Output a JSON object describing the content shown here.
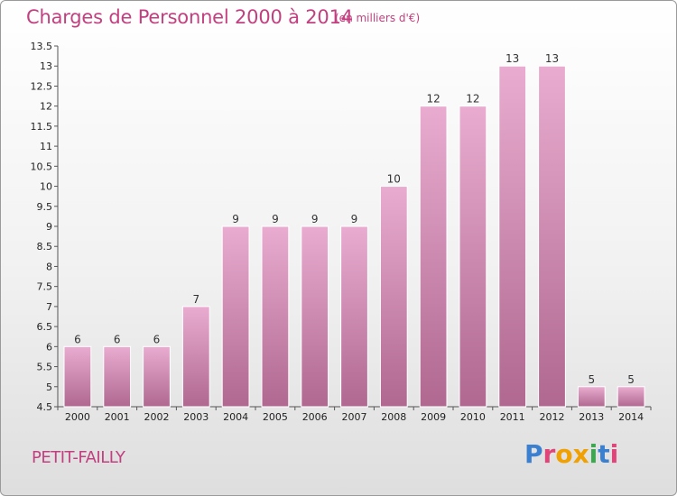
{
  "header": {
    "title": "Charges de Personnel 2000 à 2014",
    "subtitle": "(en milliers d'€)"
  },
  "footer": {
    "commune": "PETIT-FAILLY",
    "logo_text": "Proxiti"
  },
  "colors": {
    "title": "#c2407f",
    "bar_light": "#e7a6cb",
    "bar_dark": "#b26a92",
    "axis": "#555555"
  },
  "chart_data": {
    "type": "bar",
    "categories": [
      "2000",
      "2001",
      "2002",
      "2003",
      "2004",
      "2005",
      "2006",
      "2007",
      "2008",
      "2009",
      "2010",
      "2011",
      "2012",
      "2013",
      "2014"
    ],
    "values": [
      6,
      6,
      6,
      7,
      9,
      9,
      9,
      9,
      10,
      12,
      12,
      13,
      13,
      5,
      5
    ],
    "data_labels": [
      "6",
      "6",
      "6",
      "7",
      "9",
      "9",
      "9",
      "9",
      "10",
      "12",
      "12",
      "13",
      "13",
      "5",
      "5"
    ],
    "title": "Charges de Personnel 2000 à 2014",
    "subtitle": "(en milliers d'€)",
    "xlabel": "",
    "ylabel": "",
    "ylim": [
      4.5,
      13.5
    ],
    "yticks": [
      4.5,
      5,
      5.5,
      6,
      6.5,
      7,
      7.5,
      8,
      8.5,
      9,
      9.5,
      10,
      10.5,
      11,
      11.5,
      12,
      12.5,
      13,
      13.5
    ],
    "ytick_labels": [
      "4.5",
      "5",
      "5.5",
      "6",
      "6.5",
      "7",
      "7.5",
      "8",
      "8.5",
      "9",
      "9.5",
      "10",
      "10.5",
      "11",
      "11.5",
      "12",
      "12.5",
      "13",
      "13.5"
    ],
    "grid": false,
    "legend": "none"
  }
}
